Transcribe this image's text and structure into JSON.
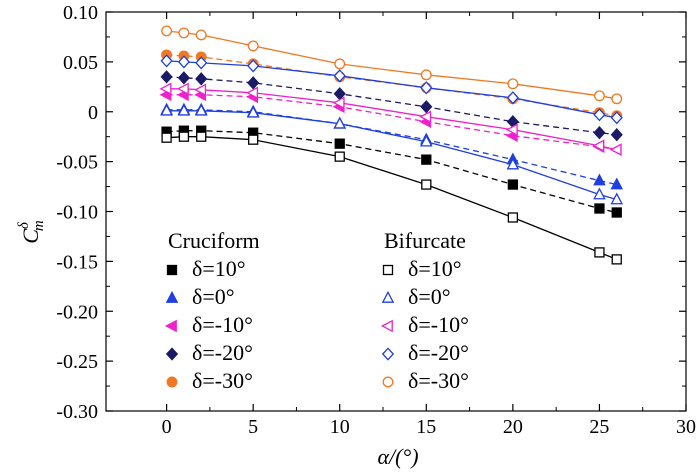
{
  "chart_data": {
    "type": "line",
    "title": "",
    "xlabel": "α/(°)",
    "ylabel_main": "C",
    "ylabel_sub": "m",
    "ylabel_sup": "δ",
    "xlim": [
      -3.5,
      30
    ],
    "ylim": [
      -0.3,
      0.1
    ],
    "xticks": [
      0,
      5,
      10,
      15,
      20,
      25,
      30
    ],
    "xtick_labels": [
      "0",
      "5",
      "10",
      "15",
      "20",
      "25",
      "30"
    ],
    "yticks": [
      0.1,
      0.05,
      0,
      -0.05,
      -0.1,
      -0.15,
      -0.2,
      -0.25,
      -0.3
    ],
    "ytick_labels": [
      "0.10",
      "0.05",
      "0",
      "-0.05",
      "-0.10",
      "-0.15",
      "-0.20",
      "-0.25",
      "-0.30"
    ],
    "x": [
      0,
      1,
      2,
      5,
      10,
      15,
      20,
      25,
      26
    ],
    "legend": {
      "placement": "bottom-left",
      "group_titles": [
        "Cruciform",
        "Bifurcate"
      ],
      "items": [
        "δ=10°",
        "δ=0°",
        "δ=-10°",
        "δ=-20°",
        "δ=-30°"
      ]
    },
    "series": [
      {
        "name": "Cruciform δ=10°",
        "group": "Cruciform",
        "color": "#000000",
        "marker": "square-filled",
        "line": "dashed",
        "values": [
          -0.02,
          -0.019,
          -0.019,
          -0.021,
          -0.032,
          -0.048,
          -0.073,
          -0.097,
          -0.101
        ]
      },
      {
        "name": "Cruciform δ=0°",
        "group": "Cruciform",
        "color": "#1f3fe0",
        "marker": "triangle-up-filled",
        "line": "dashed",
        "values": [
          0.002,
          0.002,
          0.002,
          0.0,
          -0.012,
          -0.028,
          -0.048,
          -0.069,
          -0.073
        ]
      },
      {
        "name": "Cruciform δ=-10°",
        "group": "Cruciform",
        "color": "#ee22cc",
        "marker": "triangle-left-filled",
        "line": "dashed",
        "values": [
          0.017,
          0.017,
          0.017,
          0.015,
          0.005,
          -0.01,
          -0.024,
          -0.035,
          -0.038
        ]
      },
      {
        "name": "Cruciform δ=-20°",
        "group": "Cruciform",
        "color": "#1a1a66",
        "marker": "diamond-filled",
        "line": "dashed",
        "values": [
          0.035,
          0.034,
          0.033,
          0.029,
          0.018,
          0.005,
          -0.01,
          -0.021,
          -0.023
        ]
      },
      {
        "name": "Cruciform δ=-30°",
        "group": "Cruciform",
        "color": "#f07820",
        "marker": "circle-filled",
        "line": "dashed",
        "values": [
          0.057,
          0.056,
          0.055,
          0.048,
          0.035,
          0.024,
          0.013,
          -0.001,
          -0.004
        ]
      },
      {
        "name": "Bifurcate δ=10°",
        "group": "Bifurcate",
        "color": "#000000",
        "marker": "square-open",
        "line": "solid",
        "values": [
          -0.026,
          -0.025,
          -0.025,
          -0.028,
          -0.045,
          -0.073,
          -0.106,
          -0.141,
          -0.148
        ]
      },
      {
        "name": "Bifurcate δ=0°",
        "group": "Bifurcate",
        "color": "#1f3fe0",
        "marker": "triangle-up-open",
        "line": "solid",
        "values": [
          0.001,
          0.001,
          0.001,
          -0.001,
          -0.012,
          -0.03,
          -0.053,
          -0.083,
          -0.088
        ]
      },
      {
        "name": "Bifurcate δ=-10°",
        "group": "Bifurcate",
        "color": "#ee22cc",
        "marker": "triangle-left-open",
        "line": "solid",
        "values": [
          0.023,
          0.023,
          0.022,
          0.019,
          0.009,
          -0.005,
          -0.018,
          -0.034,
          -0.038
        ]
      },
      {
        "name": "Bifurcate δ=-20°",
        "group": "Bifurcate",
        "color": "#1f3fe0",
        "marker": "diamond-open",
        "line": "solid",
        "values": [
          0.051,
          0.05,
          0.049,
          0.046,
          0.036,
          0.024,
          0.014,
          -0.003,
          -0.006
        ]
      },
      {
        "name": "Bifurcate δ=-30°",
        "group": "Bifurcate",
        "color": "#f07820",
        "marker": "circle-open",
        "line": "solid",
        "values": [
          0.081,
          0.079,
          0.077,
          0.066,
          0.048,
          0.037,
          0.028,
          0.016,
          0.013
        ]
      }
    ]
  }
}
